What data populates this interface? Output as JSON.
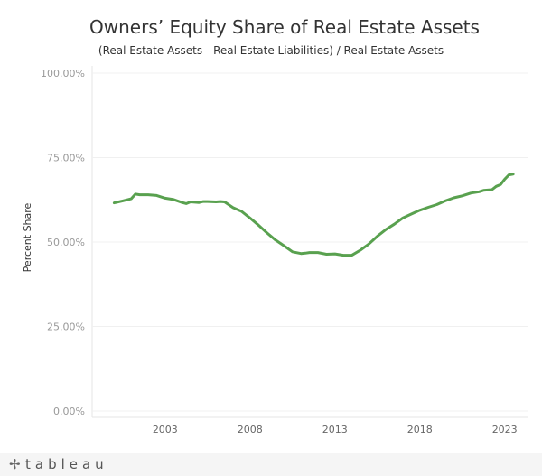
{
  "chart_data": {
    "type": "line",
    "title": "Owners’ Equity Share of Real Estate Assets",
    "subtitle": "(Real Estate Assets - Real Estate Liabilities) / Real Estate Assets",
    "ylabel": "Percent Share",
    "xlabel": "",
    "ylim": [
      0,
      100
    ],
    "xlim": [
      1998.7,
      2024.4
    ],
    "y_ticks": [
      {
        "value": 100,
        "label": "100.00%"
      },
      {
        "value": 75,
        "label": "75.00%"
      },
      {
        "value": 50,
        "label": "50.00%"
      },
      {
        "value": 25,
        "label": "25.00%"
      },
      {
        "value": 0,
        "label": "0.00%"
      }
    ],
    "x_ticks": [
      {
        "value": 2003,
        "label": "2003"
      },
      {
        "value": 2008,
        "label": "2008"
      },
      {
        "value": 2013,
        "label": "2013"
      },
      {
        "value": 2018,
        "label": "2018"
      },
      {
        "value": 2023,
        "label": "2023"
      }
    ],
    "grid": true,
    "color": "#59a14f",
    "series": [
      {
        "x": [
          2000.0,
          2000.5,
          2001.0,
          2001.25,
          2001.5,
          2002.0,
          2002.5,
          2003.0,
          2003.5,
          2004.0,
          2004.25,
          2004.5,
          2005.0,
          2005.25,
          2005.5,
          2006.0,
          2006.25,
          2006.5,
          2007.0,
          2007.5,
          2008.0,
          2008.5,
          2009.0,
          2009.5,
          2010.0,
          2010.5,
          2011.0,
          2011.25,
          2011.5,
          2012.0,
          2012.5,
          2013.0,
          2013.5,
          2014.0,
          2014.5,
          2015.0,
          2015.5,
          2016.0,
          2016.5,
          2017.0,
          2017.5,
          2018.0,
          2018.5,
          2019.0,
          2019.5,
          2020.0,
          2020.5,
          2021.0,
          2021.5,
          2021.75,
          2022.0,
          2022.25,
          2022.5,
          2022.75,
          2023.0,
          2023.25,
          2023.5
        ],
        "y": [
          61.6,
          62.2,
          62.8,
          64.2,
          64.0,
          64.0,
          63.8,
          63.0,
          62.6,
          61.7,
          61.4,
          61.9,
          61.7,
          62.0,
          62.0,
          61.9,
          62.0,
          61.9,
          60.2,
          59.1,
          57.1,
          55.0,
          52.7,
          50.6,
          48.9,
          47.1,
          46.6,
          46.7,
          46.9,
          46.9,
          46.4,
          46.5,
          46.1,
          46.1,
          47.6,
          49.4,
          51.7,
          53.7,
          55.3,
          57.1,
          58.3,
          59.4,
          60.3,
          61.1,
          62.2,
          63.1,
          63.7,
          64.5,
          64.9,
          65.3,
          65.4,
          65.5,
          66.5,
          67.0,
          68.6,
          69.9,
          70.1
        ]
      }
    ]
  },
  "footer": {
    "brand": "tableau",
    "mark": "✢"
  }
}
